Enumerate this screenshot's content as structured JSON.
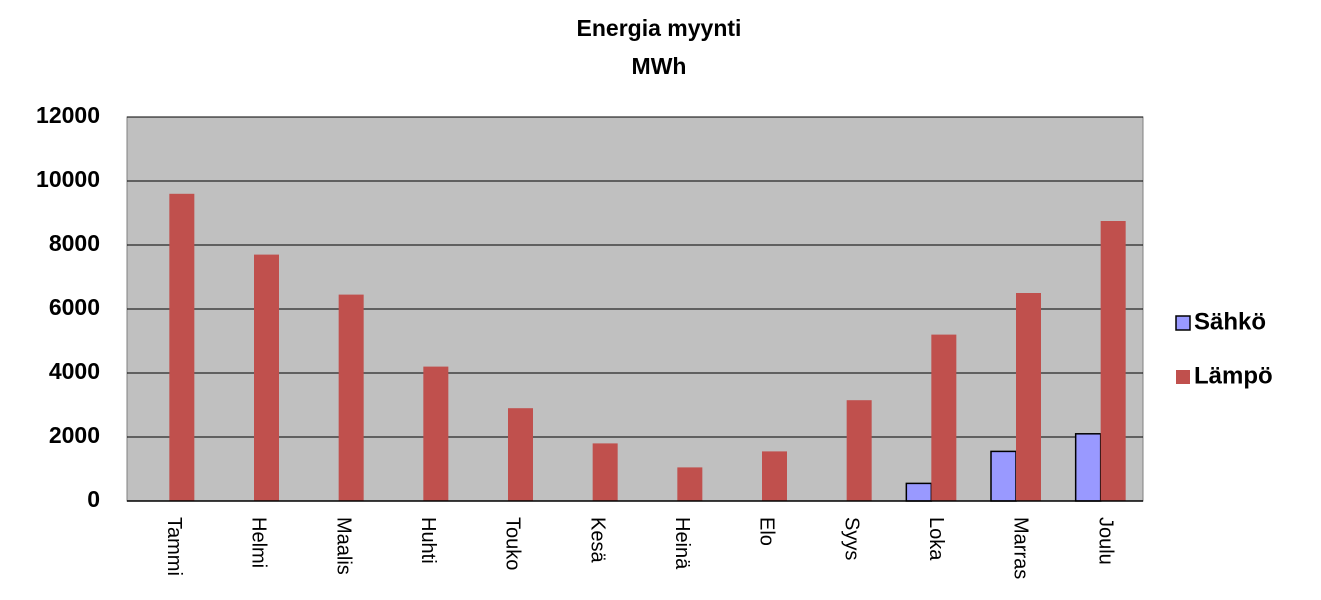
{
  "chart_data": {
    "type": "bar",
    "title": [
      "Energia myynti",
      "MWh"
    ],
    "categories": [
      "Tammi",
      "Helmi",
      "Maalis",
      "Huhti",
      "Touko",
      "Kesä",
      "Heinä",
      "Elo",
      "Syys",
      "Loka",
      "Marras",
      "Joulu"
    ],
    "series": [
      {
        "name": "Sähkö",
        "color": "#9999ff",
        "values": [
          null,
          null,
          null,
          null,
          null,
          null,
          null,
          null,
          null,
          550,
          1550,
          2100
        ]
      },
      {
        "name": "Lämpö",
        "color": "#c0504d",
        "values": [
          9600,
          7700,
          6450,
          4200,
          2900,
          1800,
          1050,
          1550,
          3150,
          5200,
          6500,
          8750
        ]
      }
    ],
    "ylim": [
      0,
      12000
    ],
    "yticks": [
      0,
      2000,
      4000,
      6000,
      8000,
      10000,
      12000
    ],
    "grid": true,
    "legend": "right"
  }
}
